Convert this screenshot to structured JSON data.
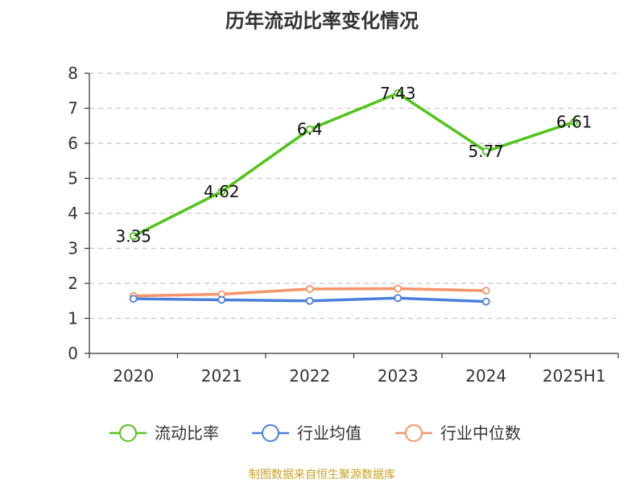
{
  "chart_data": {
    "type": "line",
    "title": "历年流动比率变化情况",
    "categories": [
      "2020",
      "2021",
      "2022",
      "2023",
      "2024",
      "2025H1"
    ],
    "ylim": [
      0,
      8
    ],
    "yticks": [
      "0",
      "1",
      "2",
      "3",
      "4",
      "5",
      "6",
      "7",
      "8"
    ],
    "grid": true,
    "legend_position": "bottom",
    "series": [
      {
        "name": "流动比率",
        "color": "#52c41a",
        "values": [
          3.35,
          4.62,
          6.4,
          7.43,
          5.77,
          6.61
        ],
        "labels": [
          "3.35",
          "4.62",
          "6.4",
          "7.43",
          "5.77",
          "6.61"
        ]
      },
      {
        "name": "行业均值",
        "color": "#4a7fdb",
        "values": [
          1.56,
          1.53,
          1.5,
          1.58,
          1.48,
          null
        ]
      },
      {
        "name": "行业中位数",
        "color": "#f5956a",
        "values": [
          1.64,
          1.69,
          1.84,
          1.85,
          1.79,
          null
        ]
      }
    ],
    "source": "制图数据来自恒生聚源数据库"
  }
}
